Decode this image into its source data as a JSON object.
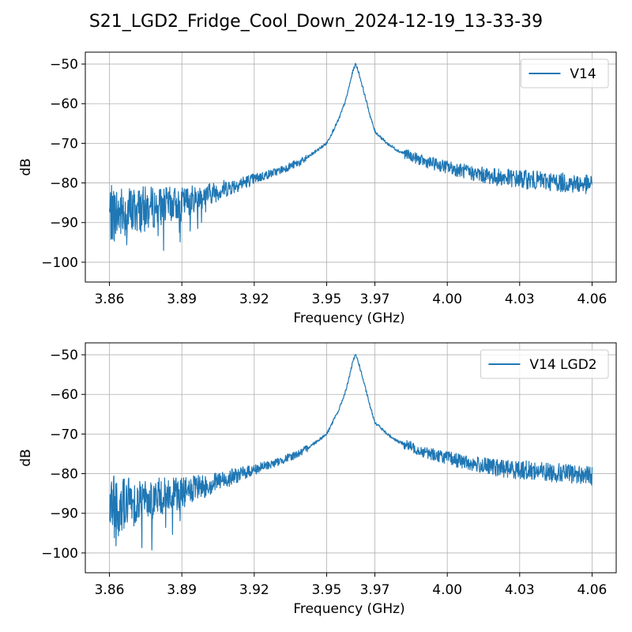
{
  "figure": {
    "title": "S21_LGD2_Fridge_Cool_Down_2024-12-19_13-33-39"
  },
  "chart_data": [
    {
      "type": "line",
      "xlabel": "Frequency (GHz)",
      "ylabel": "dB",
      "xlim": [
        3.85,
        4.07
      ],
      "ylim": [
        -105,
        -47
      ],
      "xticks": [
        3.86,
        3.89,
        3.92,
        3.95,
        3.97,
        4.0,
        4.03,
        4.06
      ],
      "xtick_labels": [
        "3.86",
        "3.89",
        "3.92",
        "3.95",
        "3.97",
        "4.00",
        "4.03",
        "4.06"
      ],
      "yticks": [
        -100,
        -90,
        -80,
        -70,
        -60,
        -50
      ],
      "ytick_labels": [
        "−100",
        "−90",
        "−80",
        "−70",
        "−60",
        "−50"
      ],
      "grid": true,
      "legend": "top-right",
      "series": [
        {
          "name": "V14",
          "color": "#1f77b4",
          "x": [
            3.86,
            3.87,
            3.88,
            3.89,
            3.9,
            3.91,
            3.92,
            3.93,
            3.94,
            3.95,
            3.955,
            3.958,
            3.96,
            3.961,
            3.962,
            3.963,
            3.965,
            3.968,
            3.97,
            3.975,
            3.98,
            3.99,
            4.0,
            4.01,
            4.02,
            4.03,
            4.04,
            4.05,
            4.06
          ],
          "y": [
            -88,
            -87,
            -86,
            -85,
            -83,
            -81,
            -79,
            -77,
            -74.5,
            -70,
            -64,
            -59,
            -54,
            -51.5,
            -50,
            -51.5,
            -56,
            -63,
            -67,
            -70,
            -72,
            -74.5,
            -76,
            -77.5,
            -78.5,
            -79,
            -79.5,
            -80,
            -80.5
          ]
        }
      ]
    },
    {
      "type": "line",
      "xlabel": "Frequency (GHz)",
      "ylabel": "dB",
      "xlim": [
        3.85,
        4.07
      ],
      "ylim": [
        -105,
        -47
      ],
      "xticks": [
        3.86,
        3.89,
        3.92,
        3.95,
        3.97,
        4.0,
        4.03,
        4.06
      ],
      "xtick_labels": [
        "3.86",
        "3.89",
        "3.92",
        "3.95",
        "3.97",
        "4.00",
        "4.03",
        "4.06"
      ],
      "yticks": [
        -100,
        -90,
        -80,
        -70,
        -60,
        -50
      ],
      "ytick_labels": [
        "−100",
        "−90",
        "−80",
        "−70",
        "−60",
        "−50"
      ],
      "grid": true,
      "legend": "top-right",
      "series": [
        {
          "name": "V14 LGD2",
          "color": "#1f77b4",
          "x": [
            3.86,
            3.87,
            3.88,
            3.89,
            3.9,
            3.91,
            3.92,
            3.93,
            3.94,
            3.95,
            3.955,
            3.958,
            3.96,
            3.961,
            3.962,
            3.963,
            3.965,
            3.968,
            3.97,
            3.975,
            3.98,
            3.99,
            4.0,
            4.01,
            4.02,
            4.03,
            4.04,
            4.05,
            4.06
          ],
          "y": [
            -88,
            -87,
            -86,
            -85,
            -83,
            -81,
            -79,
            -77,
            -74.5,
            -70,
            -64,
            -59,
            -54,
            -51.5,
            -50,
            -51.5,
            -56,
            -63,
            -67,
            -70,
            -72,
            -74.5,
            -76,
            -77.5,
            -78.5,
            -79,
            -79.5,
            -80,
            -80.5
          ]
        }
      ]
    }
  ]
}
